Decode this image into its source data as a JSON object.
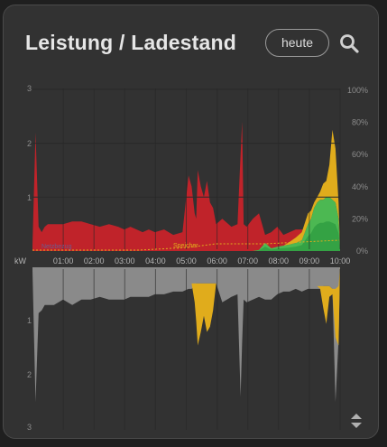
{
  "header": {
    "title": "Leistung / Ladestand",
    "button_label": "heute"
  },
  "icons": {
    "search": "search-icon",
    "sort": "sort-updown-icon"
  },
  "colors": {
    "card_bg": "#323232",
    "consumption_red": "#c0232a",
    "pv_green": "#4cb852",
    "pv_dark_green": "#34a244",
    "battery_yellow": "#e0ac1c",
    "grid_gray": "#8a8a8a",
    "speicher_orange": "#e0ac1c"
  },
  "chart_data": {
    "type": "area",
    "x_tick_labels": [
      "01:00",
      "02:00",
      "03:00",
      "04:00",
      "05:00",
      "06:00",
      "07:00",
      "08:00",
      "09:00",
      "10:00"
    ],
    "y_left_top_labels": [
      "3",
      "2",
      "1"
    ],
    "y_left_bottom_labels": [
      "1",
      "2",
      "3"
    ],
    "y_unit_label": "kW",
    "y_right_labels": [
      "100%",
      "80%",
      "60%",
      "40%",
      "20%",
      "0%"
    ],
    "annotation_speicher": "Speicher",
    "annotation_faded": "Netzbezug",
    "ylim_top": [
      0,
      3
    ],
    "ylim_bottom": [
      0,
      3
    ],
    "x": [
      0,
      0.1,
      0.2,
      0.3,
      0.4,
      0.5,
      0.7,
      1,
      1.3,
      1.6,
      1.9,
      2.2,
      2.5,
      2.8,
      3,
      3.2,
      3.4,
      3.6,
      3.8,
      4,
      4.3,
      4.6,
      4.9,
      5.1,
      5.2,
      5.3,
      5.35,
      5.4,
      5.5,
      5.6,
      5.7,
      5.8,
      5.9,
      6,
      6.2,
      6.5,
      6.7,
      6.8,
      6.85,
      6.9,
      7,
      7.2,
      7.4,
      7.6,
      7.8,
      8,
      8.2,
      8.4,
      8.6,
      8.8,
      9,
      9.1,
      9.2,
      9.3,
      9.4,
      9.5,
      9.6,
      9.7,
      9.8,
      9.9,
      10,
      10.05
    ],
    "series": [
      {
        "name": "",
        "values": [
          0.1,
          2.2,
          0.45,
          0.35,
          0.45,
          0.5,
          0.5,
          0.5,
          0.55,
          0.55,
          0.5,
          0.45,
          0.5,
          0.45,
          0.4,
          0.45,
          0.4,
          0.35,
          0.4,
          0.35,
          0.4,
          0.3,
          0.35,
          1.4,
          1.2,
          0.7,
          0.6,
          1.5,
          1.2,
          1.0,
          1.3,
          0.9,
          0.8,
          0.5,
          0.6,
          0.45,
          0.5,
          1.8,
          2.4,
          0.5,
          0.45,
          0.6,
          0.7,
          0.3,
          0.35,
          0.45,
          0.3,
          0.35,
          0.4,
          0.4,
          0.35,
          0.3,
          0.2,
          0.15,
          0.1,
          0.05,
          0.05,
          0.05,
          0.0,
          0.0,
          0.0,
          0.0
        ]
      },
      {
        "name": "",
        "values": [
          0,
          0,
          0,
          0,
          0,
          0,
          0,
          0,
          0,
          0,
          0,
          0,
          0,
          0,
          0,
          0,
          0,
          0,
          0,
          0,
          0,
          0,
          0,
          0,
          0,
          0,
          0,
          0,
          0,
          0,
          0,
          0,
          0,
          0,
          0,
          0,
          0,
          0,
          0,
          0,
          0,
          0,
          0.02,
          0.15,
          0.05,
          0.08,
          0.1,
          0.12,
          0.15,
          0.2,
          0.5,
          0.6,
          0.8,
          0.9,
          0.95,
          0.95,
          1.0,
          1.0,
          0.95,
          0.9,
          0.6,
          0.0
        ]
      },
      {
        "name": "",
        "values": [
          0,
          0,
          0,
          0,
          0,
          0,
          0,
          0,
          0,
          0,
          0,
          0,
          0,
          0,
          0,
          0,
          0,
          0,
          0,
          0,
          0,
          0,
          0,
          0,
          0,
          0,
          0,
          0,
          0,
          0,
          0,
          0,
          0,
          0,
          0,
          0,
          0,
          0,
          0,
          0,
          0,
          0,
          0,
          0,
          0,
          0,
          0,
          0.05,
          0.1,
          0.15,
          0.2,
          0.15,
          0.1,
          0.1,
          0.15,
          0.3,
          0.3,
          0.6,
          1.3,
          1.0,
          0.3,
          0.0
        ]
      },
      {
        "name": "",
        "values": [
          0.05,
          0.6,
          0.35,
          0.35,
          0.35,
          0.35,
          0.4,
          0.4,
          0.45,
          0.4,
          0.4,
          0.4,
          0.4,
          0.4,
          0.35,
          0.35,
          0.35,
          0.35,
          0.35,
          0.35,
          0.35,
          0.35,
          0.3,
          0.3,
          0.3,
          0.3,
          0.3,
          0.3,
          0.3,
          0.3,
          0.3,
          0.3,
          0.3,
          0.3,
          0.35,
          0.35,
          0.3,
          0.3,
          0.3,
          0.3,
          0.3,
          0.3,
          0.3,
          0.3,
          0.3,
          0.25,
          0.25,
          0.25,
          0.25,
          0.3,
          0.3,
          0.3,
          0.3,
          0.35,
          0.35,
          0.35,
          0.35,
          0.35,
          0.4,
          0.4,
          0.35,
          0.0
        ]
      },
      {
        "name": "",
        "values": [
          0,
          0,
          0,
          0,
          0,
          0,
          0,
          0,
          0,
          0,
          0,
          0,
          0,
          0,
          0,
          0,
          0,
          0,
          0,
          0,
          0,
          0,
          0,
          0,
          0,
          0.35,
          0.7,
          1.15,
          0.9,
          0.6,
          0.9,
          0.8,
          0.5,
          0,
          0,
          0,
          0,
          0,
          0,
          0,
          0,
          0,
          0,
          0,
          0,
          0,
          0,
          0,
          0,
          0,
          0,
          0,
          0,
          0,
          0.05,
          0.4,
          0.7,
          0.2,
          0.1,
          0.9,
          1.1,
          0.0
        ]
      },
      {
        "name": "",
        "values": [
          0,
          1.9,
          0.5,
          0.45,
          0.35,
          0.35,
          0.3,
          0.2,
          0.25,
          0.2,
          0.2,
          0.15,
          0.2,
          0.2,
          0.25,
          0.2,
          0.2,
          0.2,
          0.2,
          0.15,
          0.15,
          0.1,
          0.15,
          0.1,
          0.1,
          0.05,
          0,
          0,
          0,
          0,
          0,
          0,
          0,
          0,
          0.3,
          0.2,
          0.2,
          2.1,
          1.1,
          0.3,
          0.35,
          0.3,
          0.25,
          0.3,
          0.3,
          0.25,
          0.2,
          0.2,
          0.15,
          0.15,
          0.1,
          0.1,
          0.1,
          0.05,
          0.05,
          0,
          0,
          0,
          0,
          2.1,
          1.0,
          0.0
        ]
      },
      {
        "name": "",
        "values": [
          8,
          8,
          8,
          8,
          8,
          8,
          8,
          8,
          8,
          8,
          8,
          8,
          8,
          8,
          8,
          8,
          8,
          8,
          8,
          8,
          8,
          8,
          8,
          8,
          8,
          8,
          8,
          8,
          8,
          8,
          8,
          8,
          8,
          8,
          8,
          8,
          8,
          8,
          8,
          8,
          8,
          8,
          8,
          8,
          8,
          8,
          8,
          8,
          8,
          8,
          8,
          8,
          8,
          8,
          8,
          8,
          8,
          8,
          8,
          8,
          8,
          8
        ]
      }
    ]
  }
}
